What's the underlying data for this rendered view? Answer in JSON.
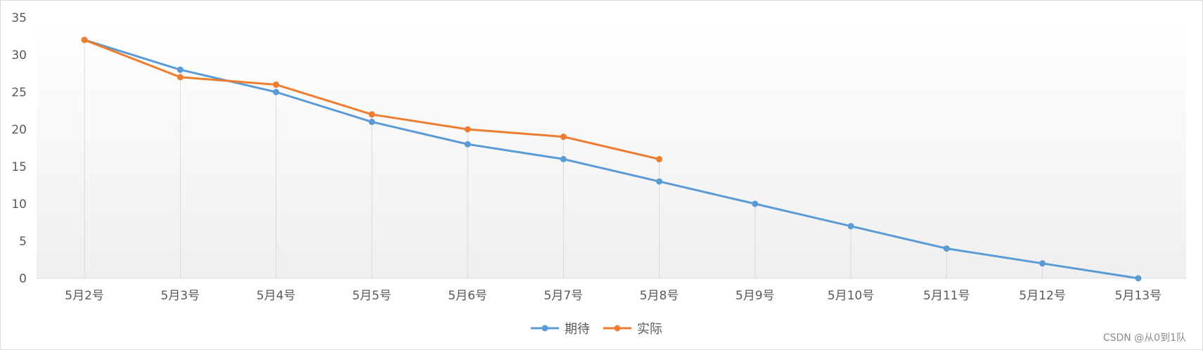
{
  "chart_data": {
    "type": "line",
    "categories": [
      "5月2号",
      "5月3号",
      "5月4号",
      "5月5号",
      "5月6号",
      "5月7号",
      "5月8号",
      "5月9号",
      "5月10号",
      "5月11号",
      "5月12号",
      "5月13号"
    ],
    "series": [
      {
        "name": "期待",
        "color": "#5b9bd5",
        "values": [
          32,
          28,
          25,
          21,
          18,
          16,
          13,
          10,
          7,
          4,
          2,
          0
        ]
      },
      {
        "name": "实际",
        "color": "#ed7d31",
        "values": [
          32,
          27,
          26,
          22,
          20,
          19,
          16,
          null,
          null,
          null,
          null,
          null
        ]
      }
    ],
    "ylim": [
      0,
      35
    ],
    "yticks": [
      0,
      5,
      10,
      15,
      20,
      25,
      30,
      35
    ],
    "drop_lines": true,
    "legend_position": "bottom",
    "title": "",
    "xlabel": "",
    "ylabel": ""
  },
  "watermark": "CSDN @从0到1队"
}
